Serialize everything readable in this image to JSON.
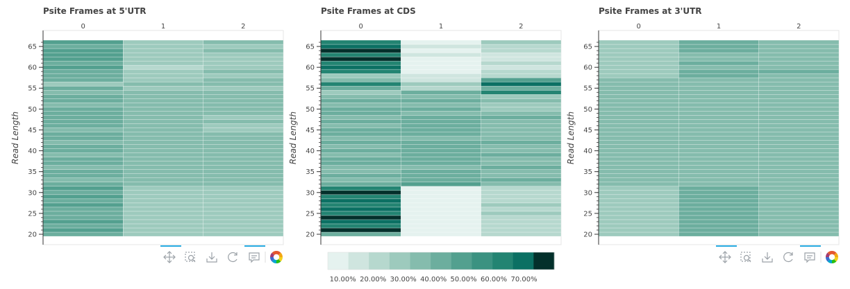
{
  "colors": {
    "palette": [
      "#e5f2ef",
      "#cfe5df",
      "#b6d8ce",
      "#9dcabd",
      "#85bcad",
      "#6cae9e",
      "#53a08f",
      "#3b9281",
      "#238472",
      "#0b7063",
      "#03302b"
    ],
    "axis": "#333333",
    "toolbar_icon": "#9aa0a6",
    "toolbar_active": "#26aae1"
  },
  "toolbar": {
    "icons": [
      "pan-icon",
      "box-zoom-icon",
      "save-icon",
      "reset-icon",
      "hover-icon",
      "bokeh-logo-icon"
    ]
  },
  "colorbar": {
    "ticks": [
      "10.00%",
      "20.00%",
      "30.00%",
      "40.00%",
      "50.00%",
      "60.00%",
      "70.00%"
    ],
    "range": [
      5,
      80
    ]
  },
  "chart_data": [
    {
      "type": "heatmap",
      "title": "Psite Frames at 5'UTR",
      "xlabel": "",
      "ylabel": "Read Length",
      "x_categories": [
        "0",
        "1",
        "2"
      ],
      "y_ticks": [
        20,
        25,
        30,
        35,
        40,
        45,
        50,
        55,
        60,
        65
      ],
      "ylim": [
        19.5,
        66.5
      ],
      "y": [
        20,
        21,
        22,
        23,
        24,
        25,
        26,
        27,
        28,
        29,
        30,
        31,
        32,
        33,
        34,
        35,
        36,
        37,
        38,
        39,
        40,
        41,
        42,
        43,
        44,
        45,
        46,
        47,
        48,
        49,
        50,
        51,
        52,
        53,
        54,
        55,
        56,
        57,
        58,
        59,
        60,
        61,
        62,
        63,
        64,
        65,
        66
      ],
      "series": [
        {
          "name": "0",
          "values": [
            45,
            47,
            44,
            46,
            45,
            45,
            44,
            46,
            45,
            47,
            44,
            46,
            40,
            38,
            42,
            40,
            38,
            40,
            42,
            38,
            40,
            42,
            38,
            40,
            44,
            38,
            40,
            43,
            40,
            42,
            40,
            38,
            44,
            40,
            38,
            40,
            30,
            40,
            45,
            44,
            50,
            45,
            48,
            46,
            50,
            44,
            48
          ]
        },
        {
          "name": "1",
          "values": [
            30,
            26,
            31,
            28,
            30,
            27,
            31,
            29,
            26,
            30,
            32,
            28,
            36,
            38,
            35,
            37,
            36,
            35,
            37,
            36,
            38,
            34,
            37,
            35,
            36,
            38,
            35,
            36,
            38,
            35,
            36,
            37,
            35,
            37,
            38,
            32,
            36,
            30,
            28,
            26,
            23,
            28,
            26,
            30,
            27,
            29,
            30
          ]
        },
        {
          "name": "2",
          "values": [
            30,
            28,
            30,
            32,
            31,
            29,
            30,
            31,
            32,
            30,
            29,
            32,
            34,
            36,
            35,
            33,
            36,
            35,
            34,
            37,
            34,
            36,
            34,
            35,
            33,
            30,
            28,
            34,
            27,
            33,
            34,
            36,
            33,
            35,
            34,
            30,
            38,
            35,
            30,
            34,
            30,
            31,
            30,
            28,
            34,
            32,
            36
          ]
        }
      ]
    },
    {
      "type": "heatmap",
      "title": "Psite Frames at CDS",
      "xlabel": "",
      "ylabel": "Read Length",
      "x_categories": [
        "0",
        "1",
        "2"
      ],
      "y_ticks": [
        20,
        25,
        30,
        35,
        40,
        45,
        50,
        55,
        60,
        65
      ],
      "ylim": [
        19.5,
        66.5
      ],
      "y": [
        20,
        21,
        22,
        23,
        24,
        25,
        26,
        27,
        28,
        29,
        30,
        31,
        32,
        33,
        34,
        35,
        36,
        37,
        38,
        39,
        40,
        41,
        42,
        43,
        44,
        45,
        46,
        47,
        48,
        49,
        50,
        51,
        52,
        53,
        54,
        55,
        56,
        57,
        58,
        59,
        60,
        61,
        62,
        63,
        64,
        65,
        66
      ],
      "series": [
        {
          "name": "0",
          "values": [
            40,
            75,
            60,
            70,
            76,
            65,
            70,
            62,
            72,
            60,
            76,
            64,
            42,
            38,
            40,
            36,
            38,
            40,
            42,
            38,
            40,
            36,
            42,
            38,
            40,
            44,
            38,
            40,
            36,
            42,
            40,
            38,
            44,
            36,
            30,
            40,
            62,
            38,
            30,
            62,
            72,
            66,
            78,
            62,
            76,
            70,
            66
          ]
        },
        {
          "name": "1",
          "values": [
            10,
            11,
            10,
            11,
            10,
            10,
            11,
            10,
            11,
            10,
            10,
            11,
            48,
            40,
            42,
            40,
            38,
            40,
            42,
            44,
            40,
            42,
            40,
            38,
            42,
            40,
            44,
            40,
            42,
            38,
            40,
            38,
            44,
            36,
            40,
            24,
            28,
            18,
            12,
            10,
            11,
            10,
            11,
            12,
            10,
            12,
            11
          ]
        },
        {
          "name": "2",
          "values": [
            22,
            25,
            21,
            24,
            22,
            26,
            23,
            27,
            21,
            24,
            25,
            22,
            34,
            40,
            36,
            38,
            40,
            36,
            38,
            40,
            36,
            38,
            40,
            36,
            38,
            34,
            36,
            38,
            40,
            36,
            32,
            30,
            38,
            26,
            62,
            45,
            70,
            50,
            22,
            20,
            16,
            24,
            12,
            18,
            24,
            20,
            30
          ]
        }
      ]
    },
    {
      "type": "heatmap",
      "title": "Psite Frames at 3'UTR",
      "xlabel": "",
      "ylabel": "Read Length",
      "x_categories": [
        "0",
        "1",
        "2"
      ],
      "y_ticks": [
        20,
        25,
        30,
        35,
        40,
        45,
        50,
        55,
        60,
        65
      ],
      "ylim": [
        19.5,
        66.5
      ],
      "y": [
        20,
        21,
        22,
        23,
        24,
        25,
        26,
        27,
        28,
        29,
        30,
        31,
        32,
        33,
        34,
        35,
        36,
        37,
        38,
        39,
        40,
        41,
        42,
        43,
        44,
        45,
        46,
        47,
        48,
        49,
        50,
        51,
        52,
        53,
        54,
        55,
        56,
        57,
        58,
        59,
        60,
        61,
        62,
        63,
        64,
        65,
        66
      ],
      "series": [
        {
          "name": "0",
          "values": [
            28,
            27,
            29,
            28,
            27,
            28,
            29,
            27,
            28,
            29,
            28,
            27,
            35,
            37,
            36,
            38,
            35,
            37,
            36,
            38,
            35,
            37,
            36,
            38,
            35,
            36,
            37,
            35,
            36,
            38,
            37,
            35,
            36,
            38,
            36,
            34,
            35,
            33,
            28,
            30,
            28,
            30,
            29,
            28,
            30,
            29,
            31
          ]
        },
        {
          "name": "1",
          "values": [
            40,
            41,
            42,
            44,
            40,
            43,
            41,
            42,
            44,
            41,
            43,
            42,
            36,
            34,
            35,
            37,
            35,
            33,
            36,
            37,
            35,
            34,
            36,
            35,
            37,
            36,
            35,
            34,
            36,
            35,
            37,
            36,
            35,
            34,
            36,
            37,
            35,
            36,
            42,
            40,
            38,
            40,
            39,
            38,
            41,
            42,
            40
          ]
        },
        {
          "name": "2",
          "values": [
            36,
            37,
            38,
            36,
            37,
            38,
            36,
            37,
            38,
            36,
            37,
            38,
            34,
            35,
            36,
            34,
            35,
            33,
            34,
            36,
            35,
            34,
            36,
            35,
            33,
            36,
            35,
            34,
            36,
            35,
            34,
            33,
            36,
            35,
            34,
            36,
            35,
            34,
            38,
            40,
            36,
            38,
            37,
            38,
            37,
            36,
            38
          ]
        }
      ]
    }
  ]
}
